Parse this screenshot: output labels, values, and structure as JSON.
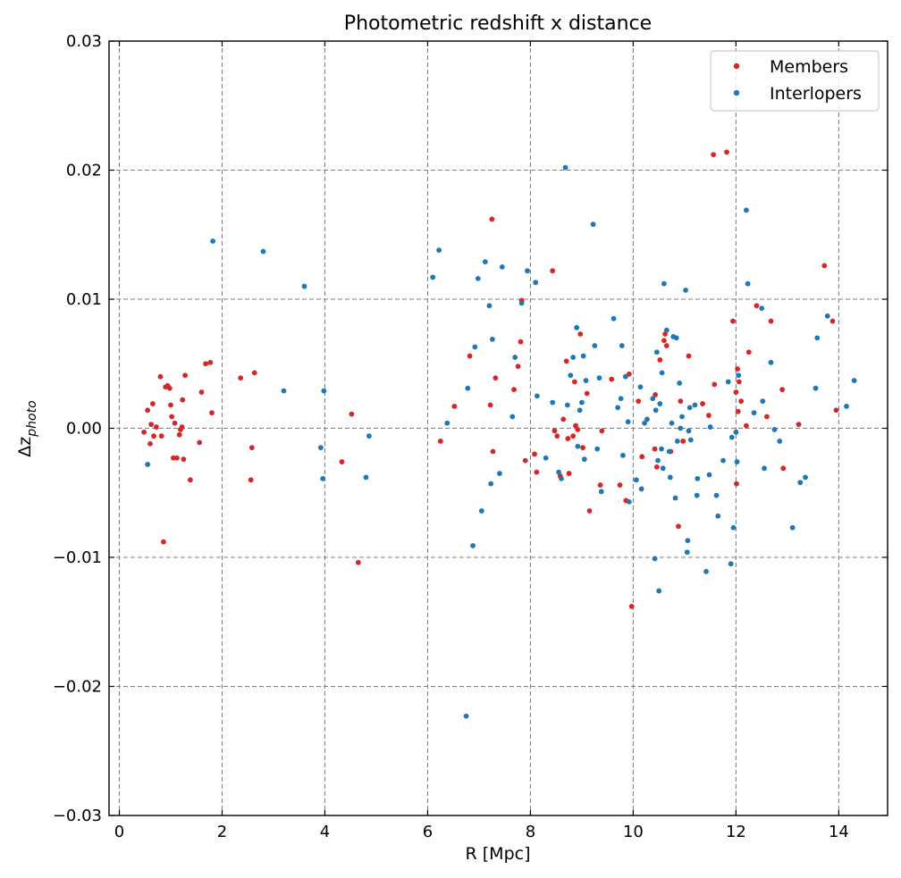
{
  "chart_data": {
    "type": "scatter",
    "title": "Photometric redshift x distance",
    "xlabel": "R [Mpc]",
    "ylabel_main": "Δz",
    "ylabel_sub": "photo",
    "xlim": [
      -0.2,
      14.95
    ],
    "ylim": [
      -0.03,
      0.03
    ],
    "xticks": [
      0,
      2,
      4,
      6,
      8,
      10,
      12,
      14
    ],
    "xtick_labels": [
      "0",
      "2",
      "4",
      "6",
      "8",
      "10",
      "12",
      "14"
    ],
    "yticks": [
      -0.03,
      -0.02,
      -0.01,
      0,
      0.01,
      0.02,
      0.03
    ],
    "ytick_labels": [
      "−0.03",
      "−0.02",
      "−0.01",
      "0.00",
      "0.01",
      "0.02",
      "0.03"
    ],
    "grid": true,
    "legend_position": "top-right",
    "series": [
      {
        "name": "Members",
        "color": "#d62728",
        "points": [
          [
            0.48,
            -0.0003
          ],
          [
            0.55,
            0.0014
          ],
          [
            0.6,
            -0.0012
          ],
          [
            0.62,
            0.0003
          ],
          [
            0.65,
            0.0019
          ],
          [
            0.67,
            -0.0006
          ],
          [
            0.72,
            0.0001
          ],
          [
            0.8,
            0.004
          ],
          [
            0.82,
            -0.0006
          ],
          [
            0.86,
            -0.0088
          ],
          [
            0.9,
            0.0032
          ],
          [
            0.94,
            0.0033
          ],
          [
            0.98,
            0.0031
          ],
          [
            1.0,
            0.0018
          ],
          [
            1.02,
            0.0009
          ],
          [
            1.05,
            -0.0023
          ],
          [
            1.08,
            0.0004
          ],
          [
            1.12,
            -0.0023
          ],
          [
            1.17,
            -0.0005
          ],
          [
            1.19,
            -0.0001
          ],
          [
            1.22,
            0.0001
          ],
          [
            1.23,
            0.0022
          ],
          [
            1.25,
            -0.0024
          ],
          [
            1.28,
            0.0041
          ],
          [
            1.38,
            -0.004
          ],
          [
            1.56,
            -0.0011
          ],
          [
            1.6,
            0.0028
          ],
          [
            1.68,
            0.005
          ],
          [
            1.77,
            0.0051
          ],
          [
            1.8,
            0.0012
          ],
          [
            2.36,
            0.0039
          ],
          [
            2.56,
            -0.004
          ],
          [
            2.58,
            -0.0015
          ],
          [
            2.63,
            0.0043
          ],
          [
            4.33,
            -0.0026
          ],
          [
            4.52,
            0.0011
          ],
          [
            4.65,
            -0.0104
          ],
          [
            6.25,
            -0.001
          ],
          [
            6.52,
            0.0017
          ],
          [
            6.82,
            0.0056
          ],
          [
            7.22,
            0.0018
          ],
          [
            7.25,
            0.0162
          ],
          [
            7.27,
            -0.0018
          ],
          [
            7.32,
            0.0039
          ],
          [
            7.68,
            0.003
          ],
          [
            7.76,
            0.0048
          ],
          [
            7.81,
            0.0067
          ],
          [
            7.83,
            0.0099
          ],
          [
            7.9,
            -0.0025
          ],
          [
            8.08,
            -0.002
          ],
          [
            8.12,
            -0.0034
          ],
          [
            8.43,
            0.0122
          ],
          [
            8.47,
            -0.0002
          ],
          [
            8.52,
            -0.0006
          ],
          [
            8.58,
            -0.0037
          ],
          [
            8.64,
            0.0007
          ],
          [
            8.7,
            0.0052
          ],
          [
            8.73,
            -0.0008
          ],
          [
            8.75,
            -0.0035
          ],
          [
            8.83,
            -0.0006
          ],
          [
            8.86,
            0.0036
          ],
          [
            8.88,
            0.0002
          ],
          [
            8.92,
            -0.0001
          ],
          [
            8.97,
            0.0073
          ],
          [
            9.02,
            -0.0015
          ],
          [
            9.1,
            0.0027
          ],
          [
            9.15,
            -0.0064
          ],
          [
            9.36,
            -0.0044
          ],
          [
            9.39,
            -0.0002
          ],
          [
            9.58,
            0.0038
          ],
          [
            9.74,
            -0.0044
          ],
          [
            9.86,
            -0.0056
          ],
          [
            9.92,
            0.0042
          ],
          [
            9.97,
            -0.0138
          ],
          [
            10.1,
            0.0021
          ],
          [
            10.17,
            -0.0022
          ],
          [
            10.42,
            -0.0016
          ],
          [
            10.43,
            0.0026
          ],
          [
            10.46,
            -0.003
          ],
          [
            10.52,
            0.0053
          ],
          [
            10.6,
            0.0068
          ],
          [
            10.62,
            0.0073
          ],
          [
            10.65,
            0.0064
          ],
          [
            10.73,
            -0.0018
          ],
          [
            10.88,
            -0.0076
          ],
          [
            10.92,
            0.0021
          ],
          [
            10.97,
            -0.001
          ],
          [
            11.08,
            0.0056
          ],
          [
            11.35,
            0.0019
          ],
          [
            11.47,
            0.001
          ],
          [
            11.56,
            0.0212
          ],
          [
            11.58,
            0.0034
          ],
          [
            11.82,
            0.0214
          ],
          [
            11.94,
            0.0083
          ],
          [
            12.0,
            0.0028
          ],
          [
            12.01,
            -0.0043
          ],
          [
            12.03,
            0.0046
          ],
          [
            12.04,
            0.0013
          ],
          [
            12.06,
            0.0036
          ],
          [
            12.1,
            0.0021
          ],
          [
            12.2,
            0.0002
          ],
          [
            12.25,
            0.0059
          ],
          [
            12.4,
            0.0095
          ],
          [
            12.6,
            0.0009
          ],
          [
            12.68,
            0.0083
          ],
          [
            12.9,
            0.003
          ],
          [
            12.92,
            -0.0031
          ],
          [
            13.22,
            0.0003
          ],
          [
            13.72,
            0.0126
          ],
          [
            13.88,
            0.0083
          ],
          [
            13.95,
            0.0014
          ]
        ]
      },
      {
        "name": "Interlopers",
        "color": "#1f77b4",
        "points": [
          [
            0.55,
            -0.0028
          ],
          [
            1.82,
            0.0145
          ],
          [
            2.8,
            0.0137
          ],
          [
            3.2,
            0.0029
          ],
          [
            3.6,
            0.011
          ],
          [
            3.92,
            -0.0015
          ],
          [
            3.96,
            -0.0039
          ],
          [
            3.98,
            0.0029
          ],
          [
            4.8,
            -0.0038
          ],
          [
            4.86,
            -0.0006
          ],
          [
            6.1,
            0.0117
          ],
          [
            6.22,
            0.0138
          ],
          [
            6.38,
            0.0004
          ],
          [
            6.78,
            0.0031
          ],
          [
            6.88,
            -0.0091
          ],
          [
            6.92,
            0.0063
          ],
          [
            6.98,
            0.0116
          ],
          [
            7.05,
            -0.0064
          ],
          [
            7.12,
            0.0129
          ],
          [
            7.2,
            0.0095
          ],
          [
            7.23,
            -0.0043
          ],
          [
            7.26,
            0.0069
          ],
          [
            7.4,
            -0.0035
          ],
          [
            7.45,
            0.0125
          ],
          [
            7.65,
            0.0009
          ],
          [
            7.7,
            0.0055
          ],
          [
            7.83,
            0.0097
          ],
          [
            7.94,
            0.0122
          ],
          [
            8.1,
            0.0113
          ],
          [
            8.13,
            0.0025
          ],
          [
            8.3,
            -0.0023
          ],
          [
            8.43,
            0.002
          ],
          [
            8.55,
            -0.0034
          ],
          [
            8.6,
            -0.0039
          ],
          [
            8.68,
            0.0202
          ],
          [
            8.72,
            0.0018
          ],
          [
            8.78,
            0.0041
          ],
          [
            8.83,
            0.0055
          ],
          [
            8.9,
            0.0078
          ],
          [
            8.92,
            -0.0014
          ],
          [
            8.96,
            0.0014
          ],
          [
            9.0,
            0.002
          ],
          [
            9.03,
            0.0056
          ],
          [
            9.05,
            -0.0024
          ],
          [
            9.08,
            0.0037
          ],
          [
            9.22,
            0.0158
          ],
          [
            9.25,
            0.0064
          ],
          [
            9.3,
            -0.0016
          ],
          [
            9.34,
            0.0039
          ],
          [
            9.38,
            -0.0049
          ],
          [
            9.62,
            0.0085
          ],
          [
            9.7,
            0.0016
          ],
          [
            9.76,
            0.0023
          ],
          [
            9.78,
            0.0064
          ],
          [
            9.8,
            -0.0021
          ],
          [
            9.85,
            0.004
          ],
          [
            9.9,
            0.0005
          ],
          [
            9.92,
            -0.0057
          ],
          [
            10.06,
            -0.004
          ],
          [
            10.14,
            0.0032
          ],
          [
            10.16,
            -0.0047
          ],
          [
            10.22,
            0.0004
          ],
          [
            10.27,
            0.0007
          ],
          [
            10.38,
            0.0023
          ],
          [
            10.42,
            -0.0101
          ],
          [
            10.44,
            0.0014
          ],
          [
            10.46,
            0.0059
          ],
          [
            10.48,
            -0.0025
          ],
          [
            10.5,
            -0.0126
          ],
          [
            10.52,
            0.0019
          ],
          [
            10.55,
            -0.0016
          ],
          [
            10.56,
            0.0043
          ],
          [
            10.58,
            -0.0031
          ],
          [
            10.6,
            0.0112
          ],
          [
            10.65,
            0.0076
          ],
          [
            10.7,
            -0.0018
          ],
          [
            10.72,
            -0.0038
          ],
          [
            10.75,
            0.0004
          ],
          [
            10.78,
            0.0071
          ],
          [
            10.82,
            -0.0054
          ],
          [
            10.84,
            0.007
          ],
          [
            10.86,
            -0.001
          ],
          [
            10.9,
            0.0035
          ],
          [
            10.92,
            0.0
          ],
          [
            10.95,
            0.0009
          ],
          [
            11.02,
            0.0107
          ],
          [
            11.05,
            -0.0096
          ],
          [
            11.06,
            -0.0087
          ],
          [
            11.08,
            -0.0002
          ],
          [
            11.1,
            0.0016
          ],
          [
            11.12,
            -0.0009
          ],
          [
            11.2,
            0.0018
          ],
          [
            11.24,
            -0.0052
          ],
          [
            11.25,
            -0.0039
          ],
          [
            11.42,
            -0.0111
          ],
          [
            11.48,
            -0.0036
          ],
          [
            11.5,
            0.0001
          ],
          [
            11.62,
            -0.0052
          ],
          [
            11.65,
            -0.0068
          ],
          [
            11.75,
            -0.0025
          ],
          [
            11.85,
            0.0036
          ],
          [
            11.9,
            -0.0105
          ],
          [
            11.92,
            -0.0007
          ],
          [
            11.95,
            -0.0077
          ],
          [
            12.0,
            -0.0003
          ],
          [
            12.02,
            -0.0026
          ],
          [
            12.05,
            0.0041
          ],
          [
            12.2,
            0.0169
          ],
          [
            12.23,
            0.0112
          ],
          [
            12.35,
            0.0012
          ],
          [
            12.5,
            0.0093
          ],
          [
            12.52,
            0.0021
          ],
          [
            12.55,
            -0.0031
          ],
          [
            12.68,
            0.0051
          ],
          [
            12.75,
            -0.0001
          ],
          [
            12.85,
            -0.001
          ],
          [
            13.1,
            -0.0077
          ],
          [
            13.25,
            -0.0042
          ],
          [
            13.35,
            -0.0038
          ],
          [
            13.55,
            0.0031
          ],
          [
            13.58,
            0.007
          ],
          [
            13.78,
            0.0087
          ],
          [
            14.15,
            0.0017
          ],
          [
            14.3,
            0.0037
          ],
          [
            6.75,
            -0.0223
          ]
        ]
      }
    ]
  }
}
